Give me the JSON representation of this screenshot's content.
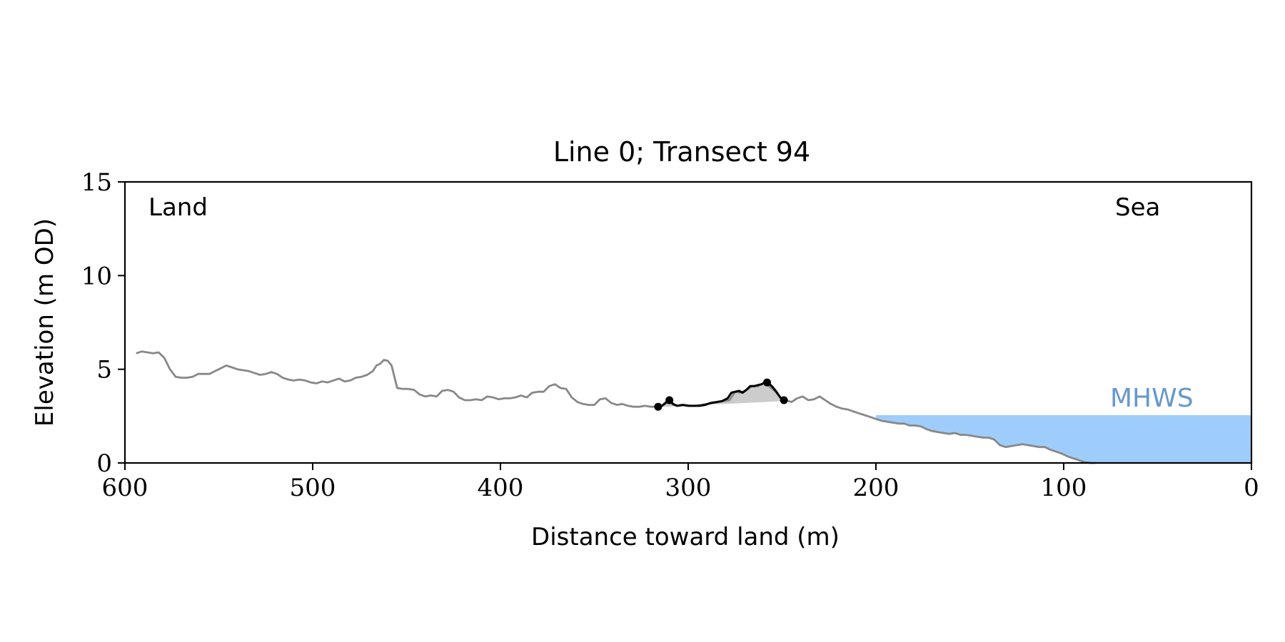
{
  "chart_data": {
    "type": "line",
    "title": "Line 0; Transect 94",
    "xlabel": "Distance toward land (m)",
    "ylabel": "Elevation (m OD)",
    "xlim": [
      600,
      0
    ],
    "ylim": [
      0,
      15
    ],
    "x_inverted": true,
    "xticks": [
      600,
      500,
      400,
      300,
      200,
      100,
      0
    ],
    "xtick_labels": [
      "600",
      "500",
      "400",
      "300",
      "200",
      "100",
      "0"
    ],
    "yticks": [
      0,
      5,
      10,
      15
    ],
    "ytick_labels": [
      "0",
      "5",
      "10",
      "15"
    ],
    "grid": false,
    "annotations": {
      "left_corner": "Land",
      "right_corner": "Sea",
      "water_label": "MHWS"
    },
    "colors": {
      "profile": "#888888",
      "highlight": "#000000",
      "fill": "#cccccc",
      "water": "#9fcdfb",
      "water_label": "#6699cc"
    },
    "water_level": 2.55,
    "water_x_range": [
      200,
      0
    ],
    "series": [
      {
        "role": "profile",
        "x": [
          594,
          591,
          588,
          585,
          582,
          579,
          576,
          573,
          570,
          567,
          564,
          561,
          558,
          555,
          552,
          549,
          546,
          543,
          540,
          537,
          534,
          531,
          528,
          525,
          522,
          519,
          516,
          513,
          510,
          507,
          504,
          501,
          498,
          495,
          492,
          489,
          486,
          483,
          480,
          477,
          474,
          471,
          468,
          466,
          464,
          462,
          460,
          458,
          455,
          452,
          449,
          446,
          443,
          440,
          437,
          434,
          431,
          428,
          425,
          422,
          419,
          416,
          413,
          410,
          407,
          404,
          401,
          398,
          395,
          392,
          389,
          386,
          383,
          380,
          377,
          374,
          371,
          368,
          365,
          362,
          359,
          356,
          353,
          350,
          347,
          344,
          341,
          338,
          335,
          332,
          329,
          326,
          323,
          320,
          317,
          314,
          311,
          308,
          305,
          302,
          299,
          296,
          293,
          290,
          287,
          284,
          281,
          278,
          275,
          272,
          269,
          266,
          263,
          260,
          257,
          254,
          251,
          248,
          245,
          242,
          239,
          236,
          233,
          230,
          227,
          224,
          221,
          218,
          215,
          212,
          209,
          206,
          203,
          200,
          197,
          194,
          191,
          188,
          185,
          182,
          179,
          176,
          173,
          170,
          167,
          164,
          161,
          158,
          155,
          152,
          149,
          146,
          143,
          140,
          137,
          134,
          131,
          128,
          125,
          122,
          119,
          116,
          113,
          110,
          107,
          104,
          101,
          98,
          95,
          92,
          89,
          86,
          83
        ],
        "y": [
          5.85,
          5.95,
          5.9,
          5.85,
          5.9,
          5.6,
          5.0,
          4.6,
          4.55,
          4.55,
          4.6,
          4.75,
          4.75,
          4.75,
          4.9,
          5.05,
          5.2,
          5.1,
          5.0,
          4.95,
          4.9,
          4.8,
          4.7,
          4.75,
          4.85,
          4.75,
          4.55,
          4.45,
          4.4,
          4.45,
          4.4,
          4.3,
          4.25,
          4.35,
          4.3,
          4.4,
          4.5,
          4.35,
          4.4,
          4.55,
          4.6,
          4.7,
          4.9,
          5.2,
          5.3,
          5.5,
          5.45,
          5.2,
          4.0,
          3.95,
          3.95,
          3.9,
          3.65,
          3.55,
          3.6,
          3.55,
          3.85,
          3.9,
          3.8,
          3.5,
          3.35,
          3.35,
          3.4,
          3.35,
          3.55,
          3.5,
          3.4,
          3.45,
          3.45,
          3.5,
          3.6,
          3.5,
          3.75,
          3.8,
          3.8,
          4.1,
          4.2,
          4.0,
          3.95,
          3.5,
          3.25,
          3.15,
          3.1,
          3.1,
          3.4,
          3.45,
          3.2,
          3.1,
          3.15,
          3.05,
          3.0,
          3.0,
          3.05,
          3.0,
          3.0,
          3.05,
          3.35,
          3.1,
          3.05,
          3.1,
          3.05,
          3.05,
          3.1,
          3.15,
          3.2,
          3.25,
          3.3,
          3.35,
          3.8,
          3.75,
          3.9,
          4.1,
          4.1,
          4.25,
          4.1,
          3.85,
          3.5,
          3.35,
          3.25,
          3.45,
          3.55,
          3.35,
          3.4,
          3.55,
          3.35,
          3.15,
          3.0,
          2.9,
          2.85,
          2.75,
          2.65,
          2.55,
          2.45,
          2.35,
          2.25,
          2.2,
          2.15,
          2.1,
          2.1,
          2.0,
          2.0,
          1.95,
          1.8,
          1.7,
          1.65,
          1.6,
          1.55,
          1.6,
          1.5,
          1.5,
          1.45,
          1.4,
          1.35,
          1.35,
          1.25,
          0.95,
          0.85,
          0.9,
          0.95,
          1.0,
          0.95,
          0.9,
          0.85,
          0.85,
          0.7,
          0.6,
          0.5,
          0.35,
          0.25,
          0.15,
          0.05,
          0.0,
          0.0
        ]
      },
      {
        "role": "highlight",
        "x": [
          316,
          314,
          312,
          310,
          308,
          306,
          303,
          300,
          297,
          294,
          291,
          288,
          285,
          282,
          279,
          277,
          275,
          273,
          271,
          269,
          267,
          265,
          263,
          261,
          259,
          257,
          255,
          253,
          251,
          249
        ],
        "y": [
          3.0,
          3.05,
          3.2,
          3.35,
          3.15,
          3.05,
          3.1,
          3.05,
          3.05,
          3.05,
          3.1,
          3.2,
          3.25,
          3.3,
          3.45,
          3.75,
          3.8,
          3.85,
          3.75,
          3.9,
          4.1,
          4.1,
          4.15,
          4.2,
          4.3,
          4.25,
          4.05,
          3.8,
          3.5,
          3.35
        ]
      }
    ],
    "markers": {
      "x": [
        316,
        310,
        258,
        249
      ],
      "y": [
        3.0,
        3.35,
        4.3,
        3.35
      ]
    },
    "shaded_region": {
      "x_range": [
        316,
        249
      ],
      "baseline_start": 2.98,
      "baseline_end": 3.3
    }
  }
}
